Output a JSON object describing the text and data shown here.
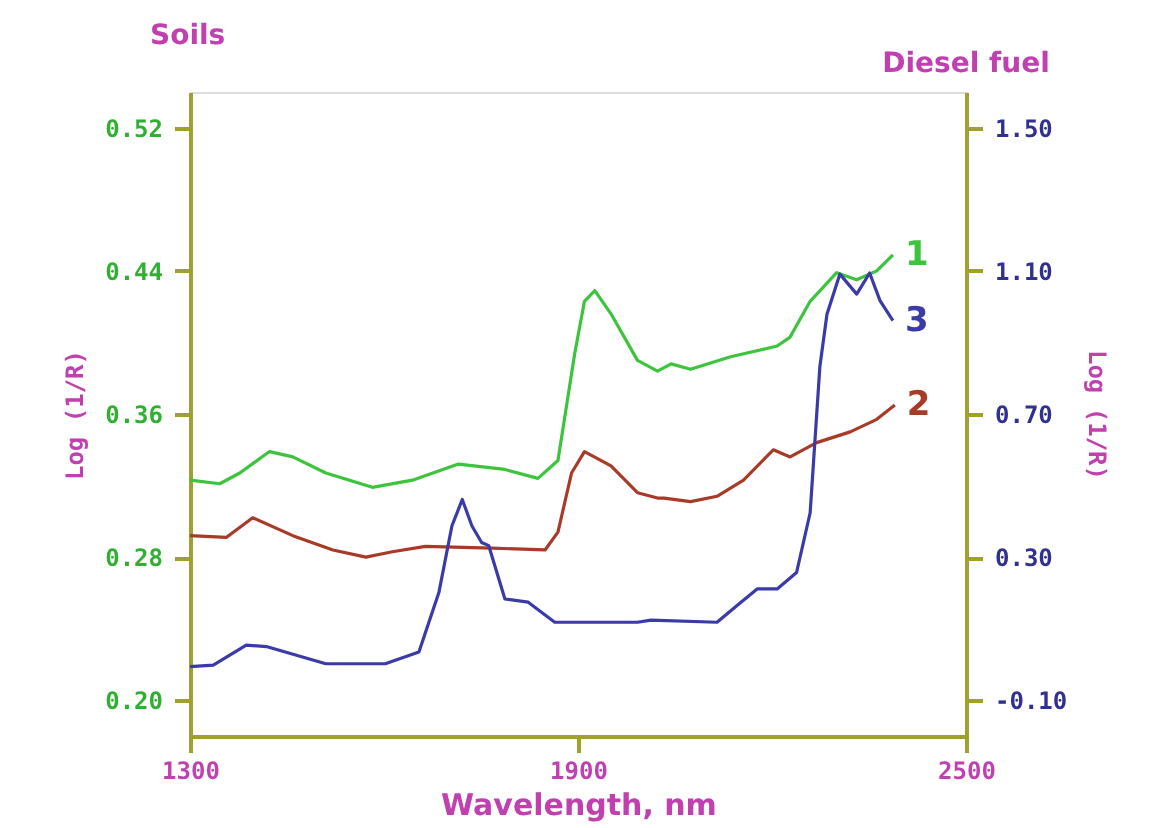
{
  "chart_data": {
    "type": "line",
    "xlabel": "Wavelength, nm",
    "ylabel": "Log (1/R)",
    "y2label": "Log (1/R)",
    "annotations": [
      "Soils",
      "Diesel fuel"
    ],
    "xlim": [
      1300,
      2500
    ],
    "xticks": [
      1300,
      1900,
      2500
    ],
    "ylim": [
      0.18,
      0.54
    ],
    "yticks": [
      {
        "value": 0.2,
        "label": "0.20"
      },
      {
        "value": 0.28,
        "label": "0.28"
      },
      {
        "value": 0.36,
        "label": "0.36"
      },
      {
        "value": 0.44,
        "label": "0.44"
      },
      {
        "value": 0.52,
        "label": "0.52"
      }
    ],
    "y2lim": [
      -0.2,
      1.6
    ],
    "y2ticks": [
      {
        "value": -0.1,
        "label": "-0.10"
      },
      {
        "value": 0.3,
        "label": "0.30"
      },
      {
        "value": 0.7,
        "label": "0.70"
      },
      {
        "value": 1.1,
        "label": "1.10"
      },
      {
        "value": 1.5,
        "label": "1.50"
      }
    ],
    "grid": false,
    "legend": false,
    "line_style": "solid",
    "series": [
      {
        "name": "1",
        "color": "#3cc43c",
        "x": [
          1300,
          1346,
          1377,
          1423,
          1459,
          1510,
          1582,
          1644,
          1715,
          1787,
          1838,
          1869,
          1895,
          1910,
          1926,
          1951,
          1992,
          2023,
          2044,
          2074,
          2136,
          2208,
          2228,
          2259,
          2300,
          2331,
          2362,
          2387
        ],
        "values": [
          0.323,
          0.321,
          0.327,
          0.339,
          0.336,
          0.327,
          0.319,
          0.323,
          0.332,
          0.329,
          0.324,
          0.334,
          0.394,
          0.423,
          0.429,
          0.416,
          0.39,
          0.384,
          0.388,
          0.385,
          0.392,
          0.398,
          0.403,
          0.423,
          0.439,
          0.435,
          0.44,
          0.449
        ]
      },
      {
        "name": "2",
        "color": "#a83a28",
        "x": [
          1300,
          1356,
          1397,
          1459,
          1521,
          1572,
          1613,
          1664,
          1767,
          1849,
          1869,
          1890,
          1910,
          1951,
          1992,
          2023,
          2033,
          2074,
          2115,
          2156,
          2202,
          2228,
          2269,
          2321,
          2362,
          2390
        ],
        "values": [
          0.292,
          0.291,
          0.302,
          0.292,
          0.284,
          0.28,
          0.283,
          0.286,
          0.285,
          0.284,
          0.294,
          0.327,
          0.339,
          0.331,
          0.316,
          0.313,
          0.313,
          0.311,
          0.314,
          0.323,
          0.34,
          0.336,
          0.344,
          0.35,
          0.357,
          0.365
        ]
      },
      {
        "name": "3",
        "color": "#3a3aa8",
        "axis": "y2",
        "x": [
          1300,
          1336,
          1387,
          1418,
          1510,
          1602,
          1654,
          1685,
          1705,
          1721,
          1736,
          1751,
          1762,
          1787,
          1823,
          1864,
          1992,
          2013,
          2115,
          2146,
          2177,
          2208,
          2238,
          2259,
          2274,
          2285,
          2305,
          2331,
          2351,
          2367,
          2387
        ],
        "values": [
          -0.006,
          -0.002,
          0.054,
          0.05,
          0.002,
          0.002,
          0.035,
          0.202,
          0.387,
          0.461,
          0.387,
          0.341,
          0.332,
          0.183,
          0.174,
          0.118,
          0.118,
          0.124,
          0.118,
          0.165,
          0.211,
          0.211,
          0.257,
          0.424,
          0.832,
          0.979,
          1.091,
          1.035,
          1.094,
          1.017,
          0.961
        ]
      }
    ]
  }
}
